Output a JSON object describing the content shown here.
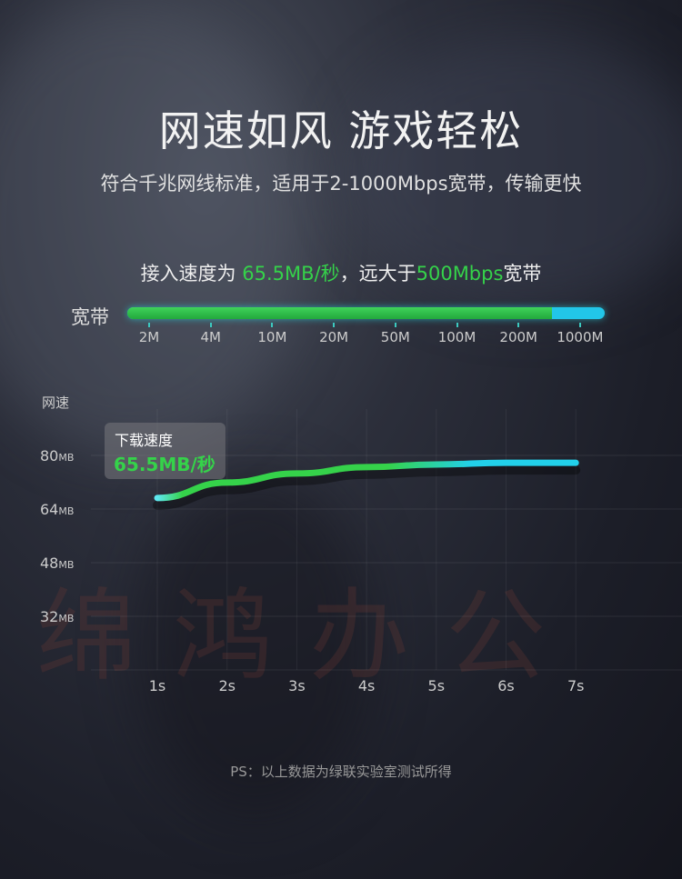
{
  "header": {
    "title": "网速如风 游戏轻松",
    "subtitle": "符合千兆网线标准，适用于2-1000Mbps宽带，传输更快"
  },
  "speed_line": {
    "prefix": "接入速度为 ",
    "speed": "65.5MB/秒",
    "middle": "，远大于",
    "compare": "500Mbps",
    "suffix": "宽带"
  },
  "bandwidth": {
    "label": "宽带",
    "ticks": [
      "2M",
      "4M",
      "10M",
      "20M",
      "50M",
      "100M",
      "200M",
      "1000M"
    ],
    "fill_fraction": 0.89,
    "colors": {
      "fill": "#35d24a",
      "rest": "#22c6e8"
    }
  },
  "chart_data": {
    "type": "line",
    "ylabel": "网速",
    "x": [
      "1s",
      "2s",
      "3s",
      "4s",
      "5s",
      "6s",
      "7s"
    ],
    "values": [
      67.3,
      71.9,
      74.6,
      76.5,
      77.3,
      77.8,
      77.8
    ],
    "yticks": [
      {
        "v": 80,
        "n": "80",
        "u": "MB"
      },
      {
        "v": 64,
        "n": "64",
        "u": "MB"
      },
      {
        "v": 48,
        "n": "48",
        "u": "MB"
      },
      {
        "v": 32,
        "n": "32",
        "u": "MB"
      }
    ],
    "ylim": [
      16,
      88
    ],
    "grid": true,
    "line_colors": [
      "#35d24a",
      "#22d0ea"
    ],
    "tooltip": {
      "label": "下载速度",
      "value": "65.5MB/秒"
    }
  },
  "watermark": "绵鸿办公",
  "footer": "PS：以上数据为绿联实验室测试所得"
}
